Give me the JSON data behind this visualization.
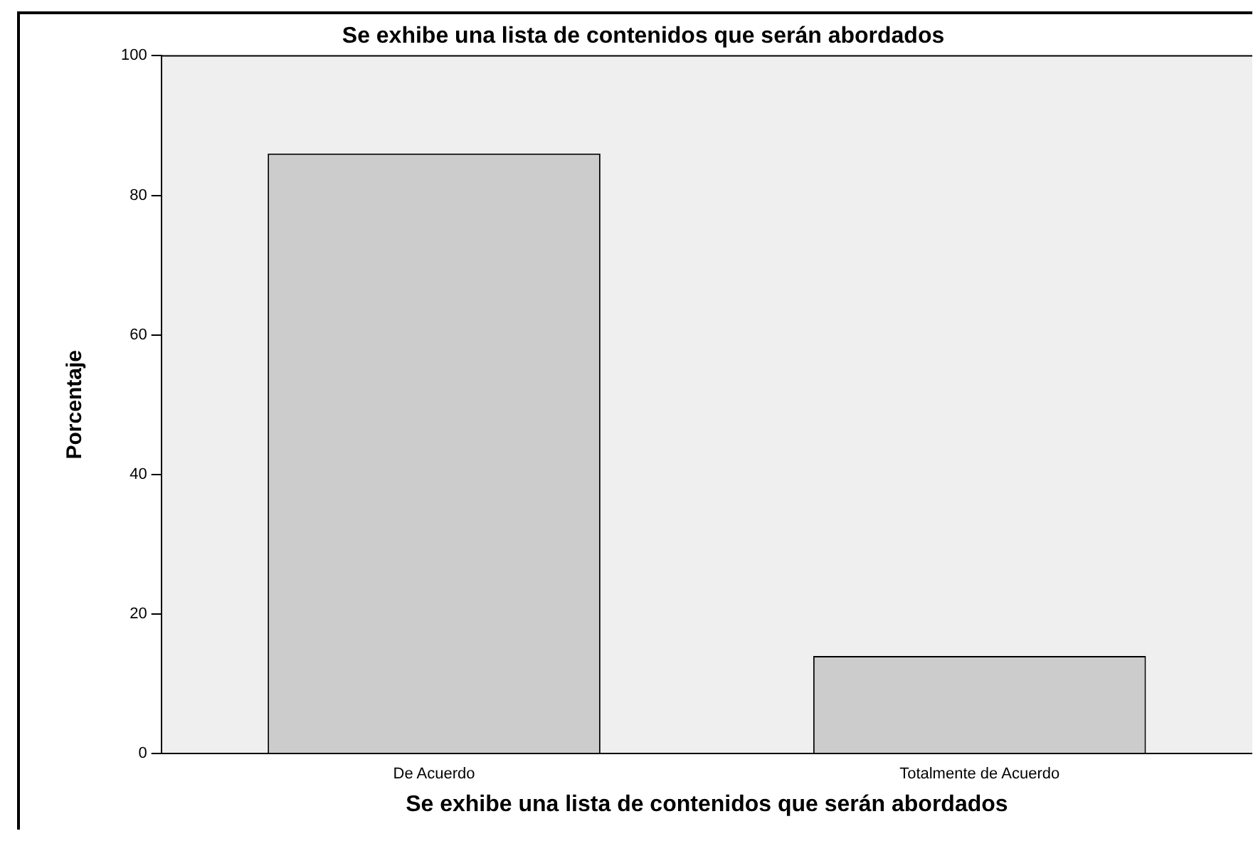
{
  "chart_data": {
    "type": "bar",
    "title": "Se exhibe una lista de contenidos que serán abordados",
    "xlabel": "Se exhibe una lista de contenidos que serán abordados",
    "ylabel": "Porcentaje",
    "categories": [
      "De Acuerdo",
      "Totalmente de Acuerdo"
    ],
    "values": [
      86,
      14
    ],
    "color": "#cccccc",
    "ylim": [
      0,
      100
    ],
    "yticks": [
      0,
      20,
      40,
      60,
      80,
      100
    ],
    "grid": false,
    "legend": false
  }
}
